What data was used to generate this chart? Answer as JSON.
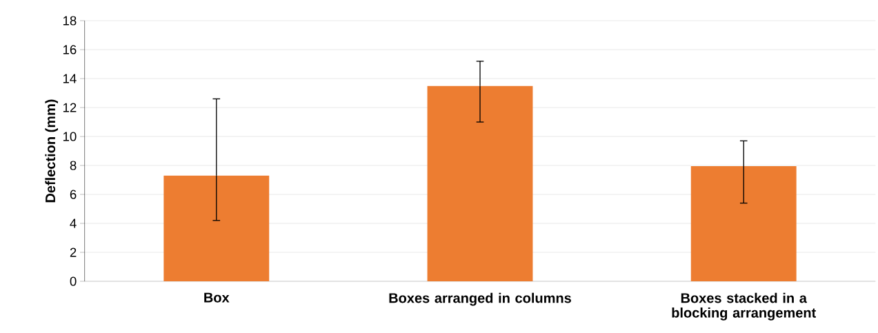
{
  "chart_data": {
    "type": "bar",
    "ylabel": "Deflection (mm)",
    "categories": [
      "Box",
      "Boxes arranged in columns",
      "Boxes stacked in a blocking arrangement"
    ],
    "values": [
      7.3,
      13.5,
      7.95
    ],
    "errors": [
      [
        4.2,
        12.6
      ],
      [
        11.0,
        15.2
      ],
      [
        5.4,
        9.7
      ]
    ],
    "color": "#ed7d31",
    "ylim": [
      0,
      18
    ],
    "yticks": [
      0,
      2,
      4,
      6,
      8,
      10,
      12,
      14,
      16,
      18
    ],
    "grid": "y"
  }
}
